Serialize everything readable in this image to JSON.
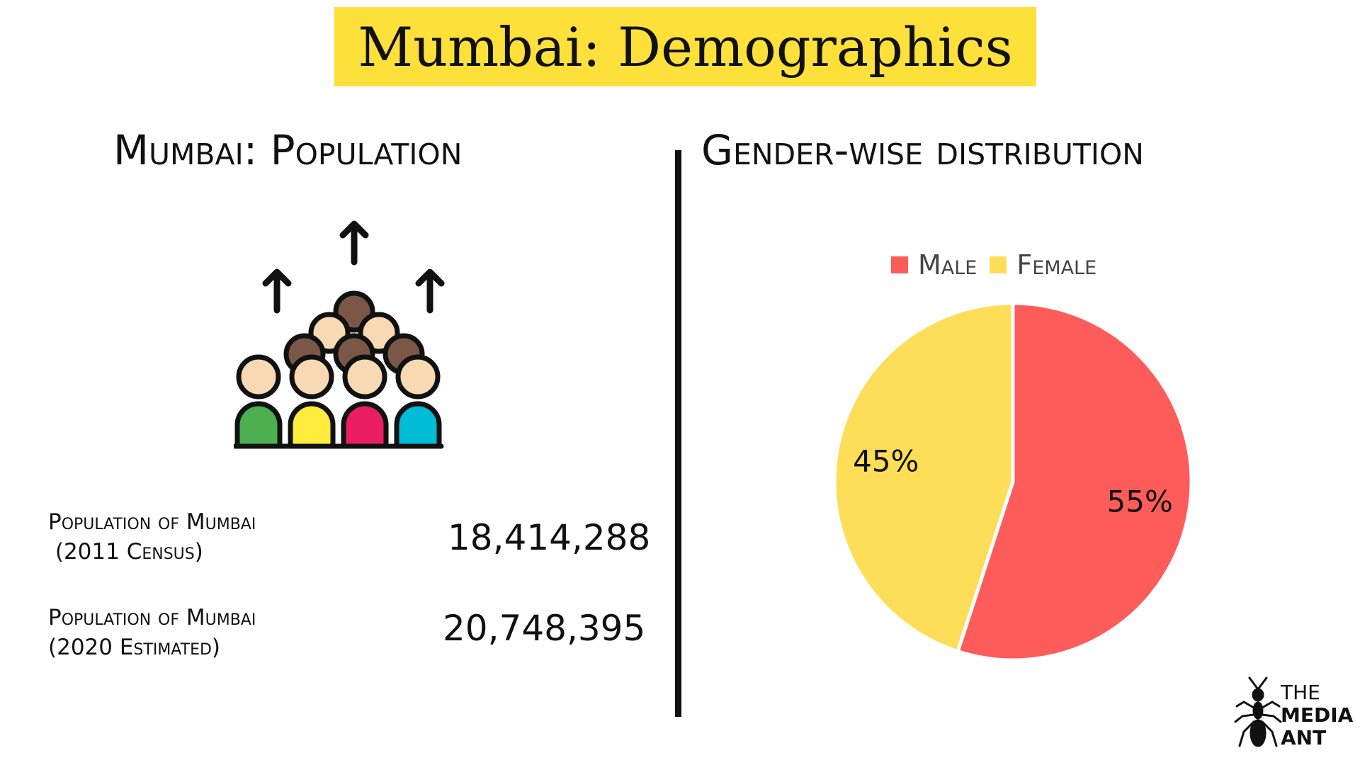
{
  "header": {
    "title": "Mumbai: Demographics"
  },
  "population": {
    "title": "Mumbai: Population",
    "stats": [
      {
        "label_line1": "Population of Mumbai",
        "label_line2": " (2011 Census)",
        "value": "18,414,288"
      },
      {
        "label_line1": "Population of Mumbai",
        "label_line2": "(2020 Estimated)",
        "value": "20,748,395"
      }
    ],
    "icon": "crowd-growth-icon"
  },
  "gender": {
    "title": "Gender-wise distribution"
  },
  "chart_data": {
    "type": "pie",
    "title": "",
    "legend_position": "top",
    "series": [
      {
        "name": "Male",
        "value": 55,
        "label": "55%",
        "color": "#fe5c5a"
      },
      {
        "name": "Female",
        "value": 45,
        "label": "45%",
        "color": "#fedd58"
      }
    ]
  },
  "logo": {
    "line1": "THE",
    "line2": "MEDIA",
    "line3": "ANT"
  }
}
